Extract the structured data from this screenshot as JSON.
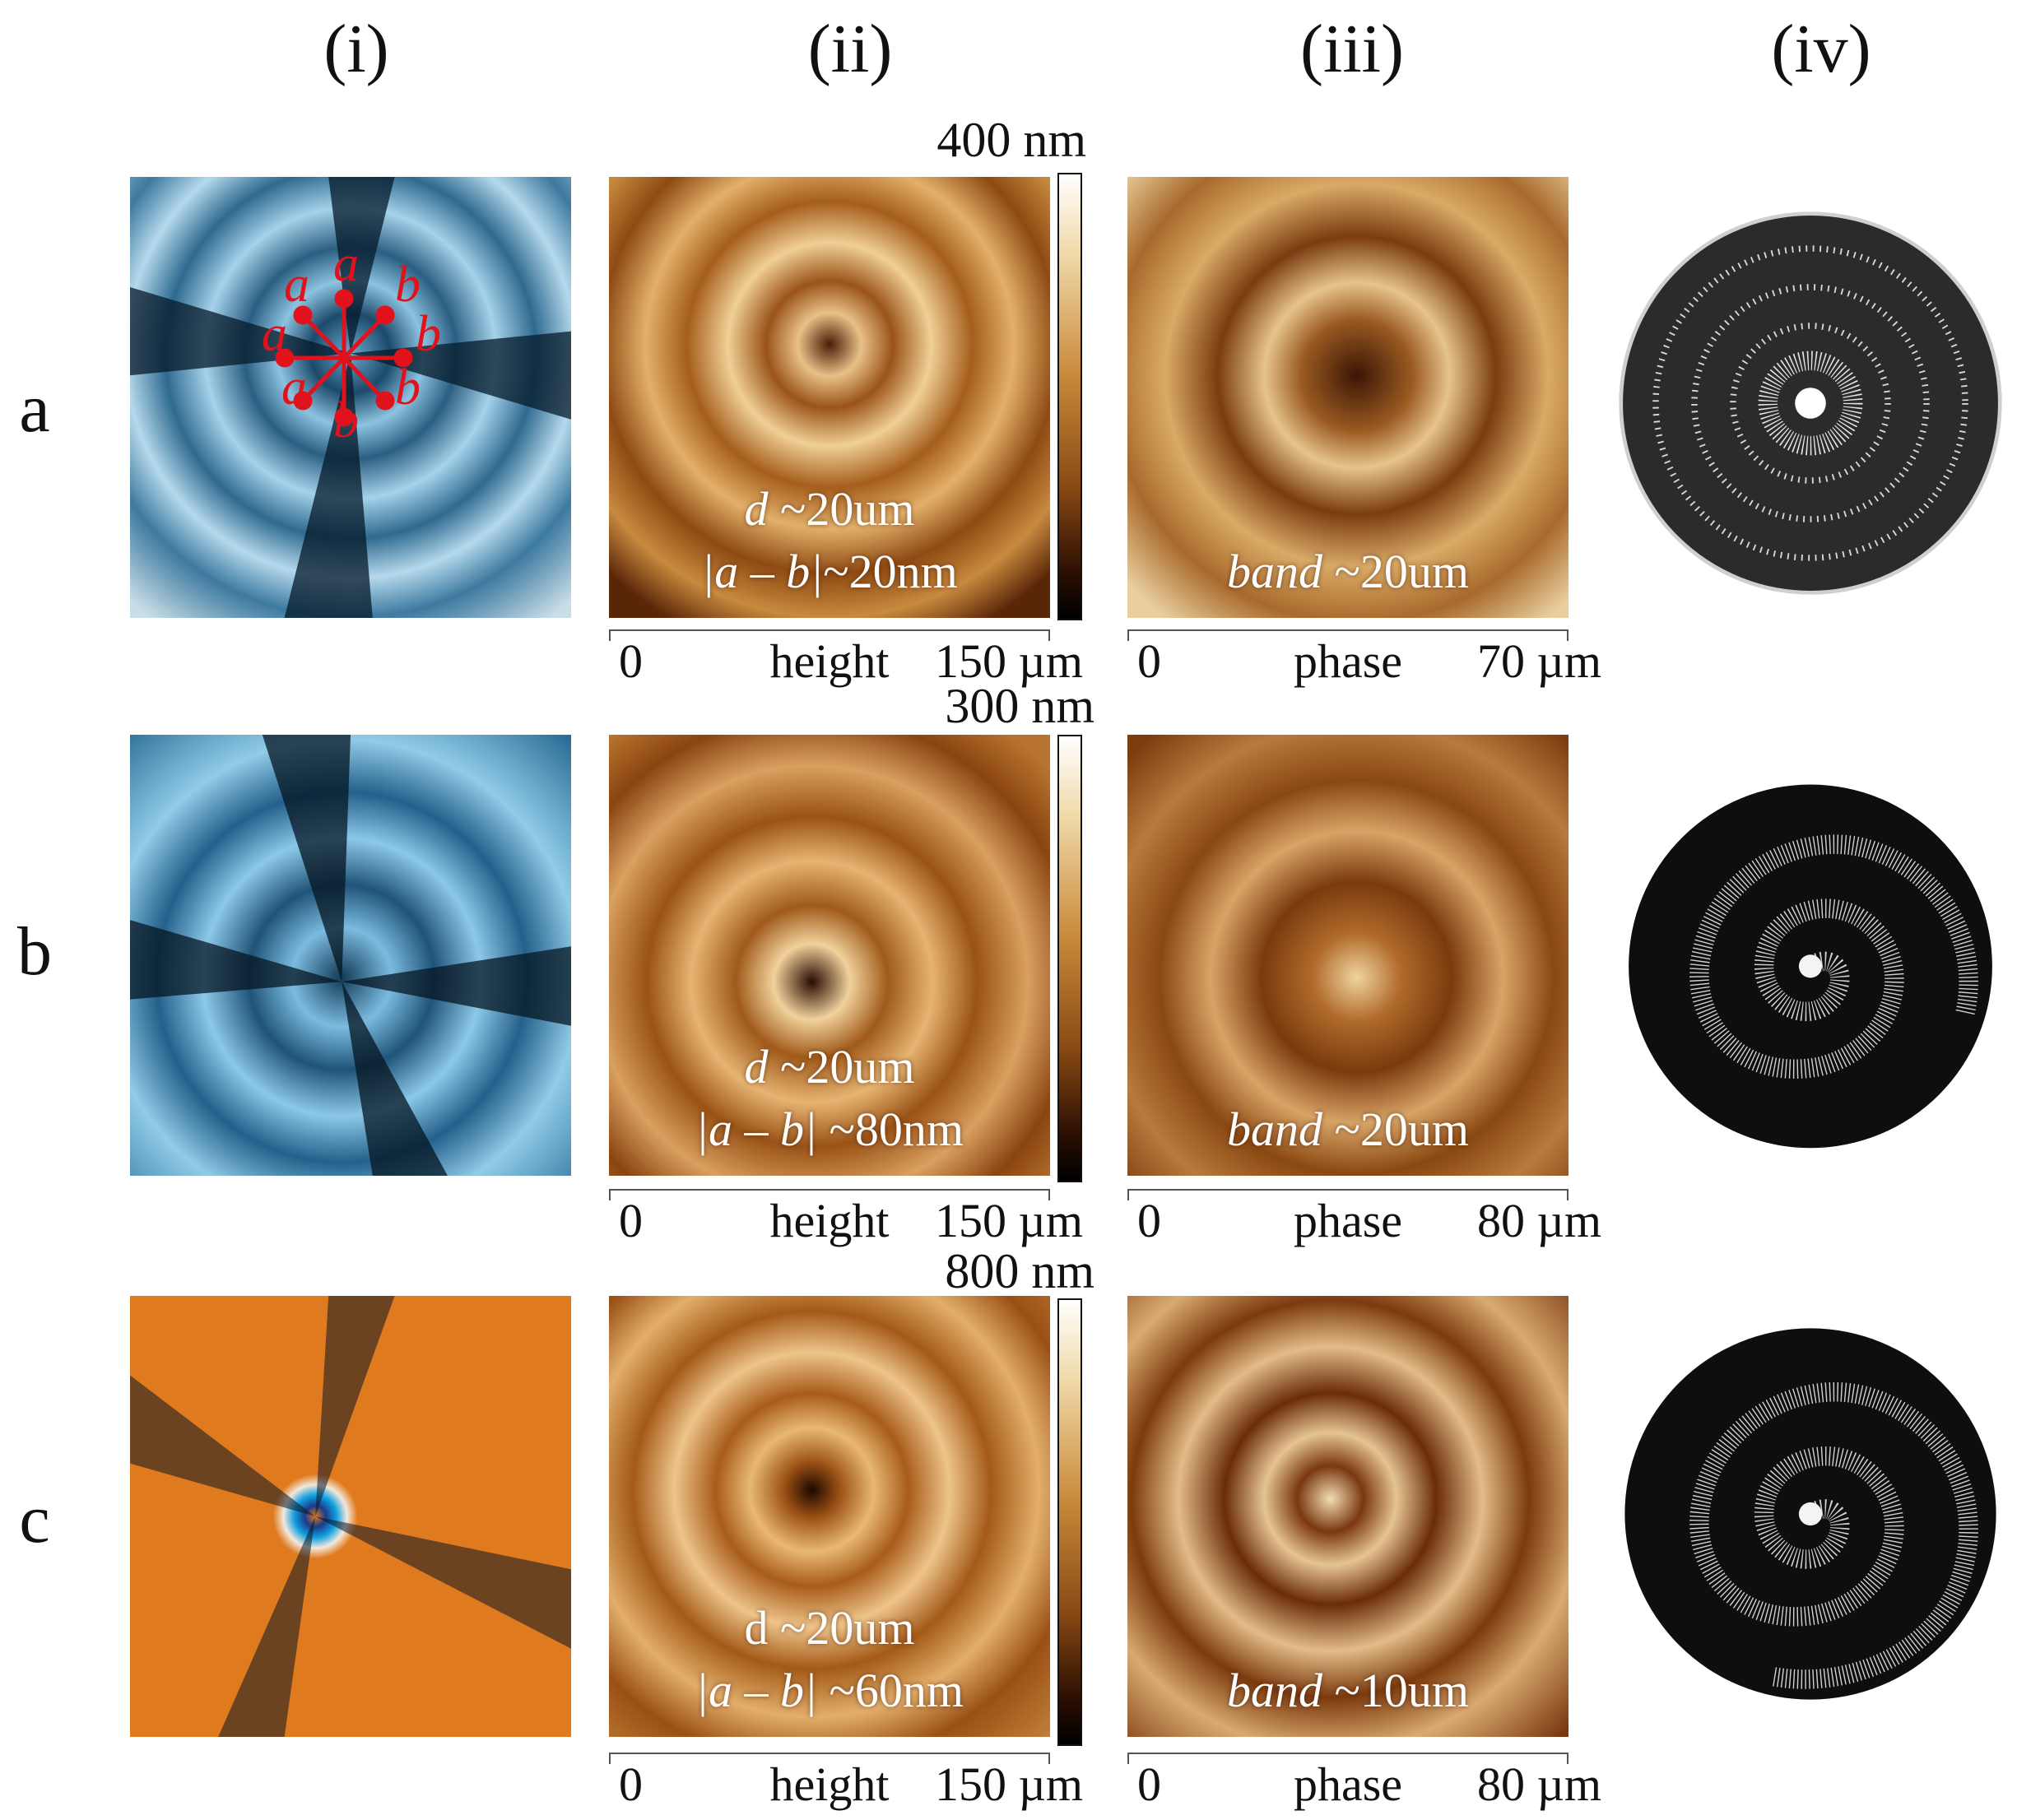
{
  "columns": [
    "(i)",
    "(ii)",
    "(iii)",
    "(iv)"
  ],
  "rows": [
    {
      "label": "a",
      "colorbar_max": "400 nm",
      "height_axis": {
        "lo": "0",
        "mid": "height",
        "hi": "150 µm"
      },
      "phase_axis": {
        "lo": "0",
        "mid": "phase",
        "hi": "70 µm"
      },
      "height_anno_1_sym": "d",
      "height_anno_1_rest": " ~20um",
      "height_anno_2_sym": "|a – b|",
      "height_anno_2_rest": "~20nm",
      "phase_anno_sym": "band",
      "phase_anno_rest": " ~20um",
      "pom_labels": [
        "a",
        "a",
        "b",
        "a",
        "b",
        "a",
        "b",
        "b"
      ]
    },
    {
      "label": "b",
      "colorbar_max": "300 nm",
      "height_axis": {
        "lo": "0",
        "mid": "height",
        "hi": "150 µm"
      },
      "phase_axis": {
        "lo": "0",
        "mid": "phase",
        "hi": "80 µm"
      },
      "height_anno_1_sym": "d",
      "height_anno_1_rest": " ~20um",
      "height_anno_2_sym": "|a – b|",
      "height_anno_2_rest": " ~80nm",
      "phase_anno_sym": "band",
      "phase_anno_rest": " ~20um"
    },
    {
      "label": "c",
      "colorbar_max": "800 nm",
      "height_axis": {
        "lo": "0",
        "mid": "height",
        "hi": "150 µm"
      },
      "phase_axis": {
        "lo": "0",
        "mid": "phase",
        "hi": "80 µm"
      },
      "height_anno_1_sym": "d",
      "height_anno_1_rest": " ~20um",
      "height_anno_2_sym": "|a – b|",
      "height_anno_2_rest": " ~60nm",
      "phase_anno_sym": "band",
      "phase_anno_rest": " ~10um"
    }
  ]
}
